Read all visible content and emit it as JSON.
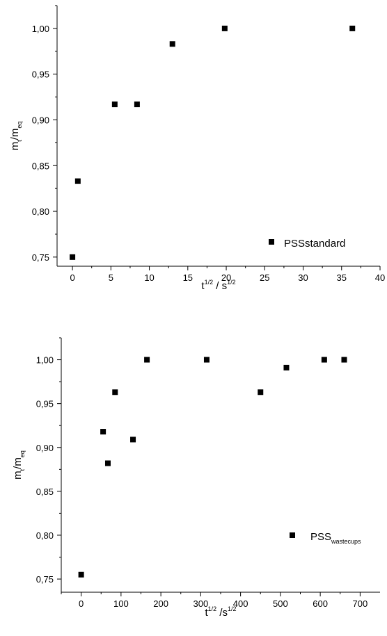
{
  "chart_data": [
    {
      "type": "scatter",
      "xlabel": {
        "base": "t",
        "sup": "1/2",
        "sep": " / ",
        "base2": "s",
        "sup2": "1/2"
      },
      "ylabel": {
        "base": "m",
        "sub": "t",
        "sep": "/",
        "base2": "m",
        "sub2": "eq"
      },
      "xlim": [
        -2,
        40
      ],
      "ylim": [
        0.74,
        1.025
      ],
      "xticks": [
        0,
        5,
        10,
        15,
        20,
        25,
        30,
        35,
        40
      ],
      "xtick_labels": [
        "0",
        "5",
        "10",
        "15",
        "20",
        "25",
        "30",
        "35",
        "40"
      ],
      "yticks": [
        0.75,
        0.8,
        0.85,
        0.9,
        0.95,
        1.0
      ],
      "ytick_labels": [
        "0,75",
        "0,80",
        "0,85",
        "0,90",
        "0,95",
        "1,00"
      ],
      "legend": {
        "label": "PSSstandard",
        "sub": "",
        "position": "bottom-right"
      },
      "series": [
        {
          "name": "PSSstandard",
          "marker": "square",
          "color": "#000000",
          "x": [
            0,
            0.7,
            5.5,
            8.4,
            13,
            19.8,
            36.4
          ],
          "y": [
            0.75,
            0.833,
            0.917,
            0.917,
            0.983,
            1.0,
            1.0
          ]
        }
      ]
    },
    {
      "type": "scatter",
      "xlabel": {
        "base": "t",
        "sup": "1/2",
        "sep": " /",
        "base2": "s",
        "sup2": "1/2"
      },
      "ylabel": {
        "base": "m",
        "sub": "t",
        "sep": "/",
        "base2": "m",
        "sub2": "eq"
      },
      "xlim": [
        -50,
        750
      ],
      "ylim": [
        0.735,
        1.025
      ],
      "xticks": [
        0,
        100,
        200,
        300,
        400,
        500,
        600,
        700
      ],
      "xtick_labels": [
        "0",
        "100",
        "200",
        "300",
        "400",
        "500",
        "600",
        "700"
      ],
      "yticks": [
        0.75,
        0.8,
        0.85,
        0.9,
        0.95,
        1.0
      ],
      "ytick_labels": [
        "0,75",
        "0,80",
        "0,85",
        "0,90",
        "0,95",
        "1,00"
      ],
      "legend": {
        "label": "PSS",
        "sub": "wastecups",
        "position": "bottom-right"
      },
      "series": [
        {
          "name": "PSSwastecups",
          "marker": "square",
          "color": "#000000",
          "x": [
            0,
            55,
            67,
            85,
            130,
            165,
            315,
            450,
            515,
            610,
            660
          ],
          "y": [
            0.755,
            0.918,
            0.882,
            0.963,
            0.909,
            1.0,
            1.0,
            0.963,
            0.991,
            1.0,
            1.0
          ]
        }
      ]
    }
  ]
}
